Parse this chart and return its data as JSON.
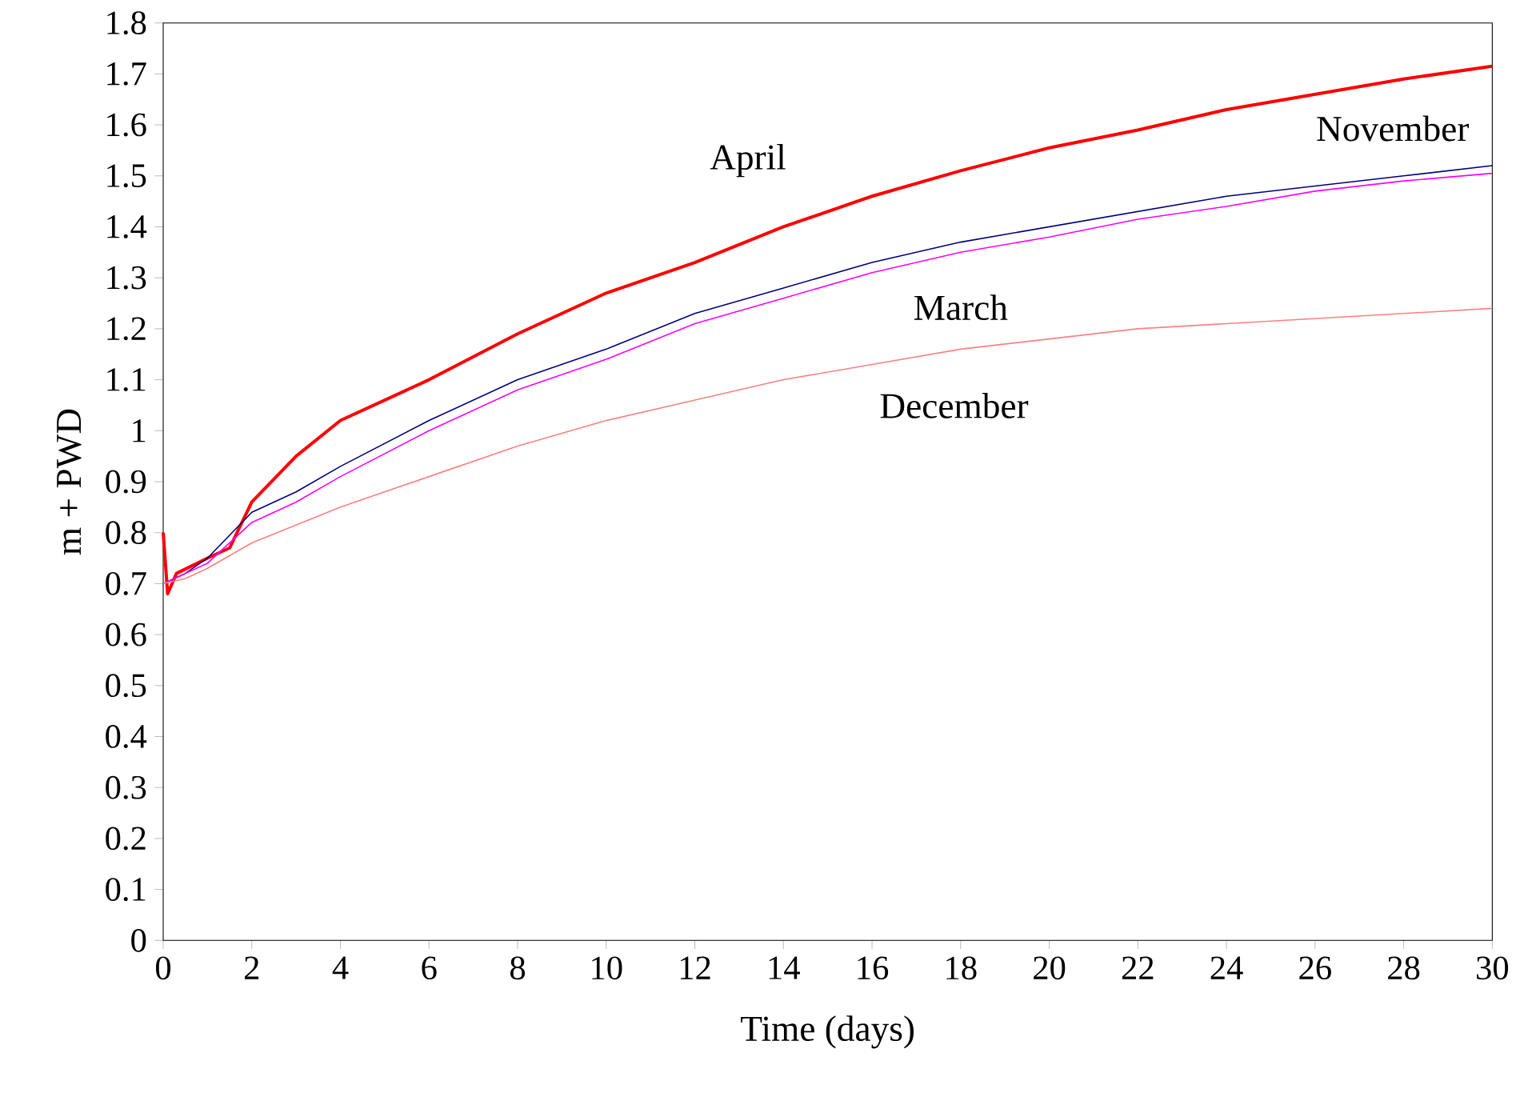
{
  "chart_data": {
    "type": "line",
    "xlabel": "Time (days)",
    "ylabel": "m + PWD",
    "xlim": [
      0,
      30
    ],
    "xticks": [
      0,
      2,
      4,
      6,
      8,
      10,
      12,
      14,
      16,
      18,
      20,
      22,
      24,
      26,
      28,
      30
    ],
    "ylim": [
      0,
      1.8
    ],
    "yticks": [
      0,
      0.1,
      0.2,
      0.3,
      0.4,
      0.5,
      0.6,
      0.7,
      0.8,
      0.9,
      1,
      1.1,
      1.2,
      1.3,
      1.4,
      1.5,
      1.6,
      1.7,
      1.8
    ],
    "grid": false,
    "legend": false,
    "marker": "none",
    "line_style": "solid",
    "series": [
      {
        "name": "April",
        "color": "#ff0000",
        "x": [
          0,
          0.1,
          0.3,
          1,
          1.5,
          2,
          3,
          4,
          6,
          8,
          10,
          12,
          14,
          16,
          18,
          20,
          22,
          24,
          26,
          28,
          30
        ],
        "values": [
          0.8,
          0.68,
          0.72,
          0.75,
          0.77,
          0.86,
          0.95,
          1.02,
          1.1,
          1.19,
          1.27,
          1.33,
          1.4,
          1.46,
          1.51,
          1.555,
          1.59,
          1.63,
          1.66,
          1.69,
          1.715
        ]
      },
      {
        "name": "November",
        "color": "#000080",
        "x": [
          0,
          0.5,
          1,
          2,
          3,
          4,
          6,
          8,
          10,
          12,
          14,
          16,
          18,
          20,
          22,
          24,
          26,
          28,
          30
        ],
        "values": [
          0.7,
          0.72,
          0.75,
          0.84,
          0.88,
          0.93,
          1.02,
          1.1,
          1.16,
          1.23,
          1.28,
          1.33,
          1.37,
          1.4,
          1.43,
          1.46,
          1.48,
          1.5,
          1.52
        ]
      },
      {
        "name": "March",
        "color": "#ff00ff",
        "x": [
          0,
          0.5,
          1,
          2,
          3,
          4,
          6,
          8,
          10,
          12,
          14,
          16,
          18,
          20,
          22,
          24,
          26,
          28,
          30
        ],
        "values": [
          0.7,
          0.72,
          0.74,
          0.82,
          0.86,
          0.91,
          1.0,
          1.08,
          1.14,
          1.21,
          1.26,
          1.31,
          1.35,
          1.38,
          1.415,
          1.44,
          1.47,
          1.49,
          1.505
        ]
      },
      {
        "name": "December",
        "color": "#ff8080",
        "x": [
          0,
          0.5,
          1,
          2,
          4,
          6,
          8,
          10,
          12,
          14,
          16,
          18,
          20,
          22,
          24,
          26,
          28,
          30
        ],
        "values": [
          0.7,
          0.71,
          0.73,
          0.78,
          0.85,
          0.91,
          0.97,
          1.02,
          1.06,
          1.1,
          1.13,
          1.16,
          1.18,
          1.2,
          1.21,
          1.22,
          1.23,
          1.24
        ]
      }
    ]
  }
}
